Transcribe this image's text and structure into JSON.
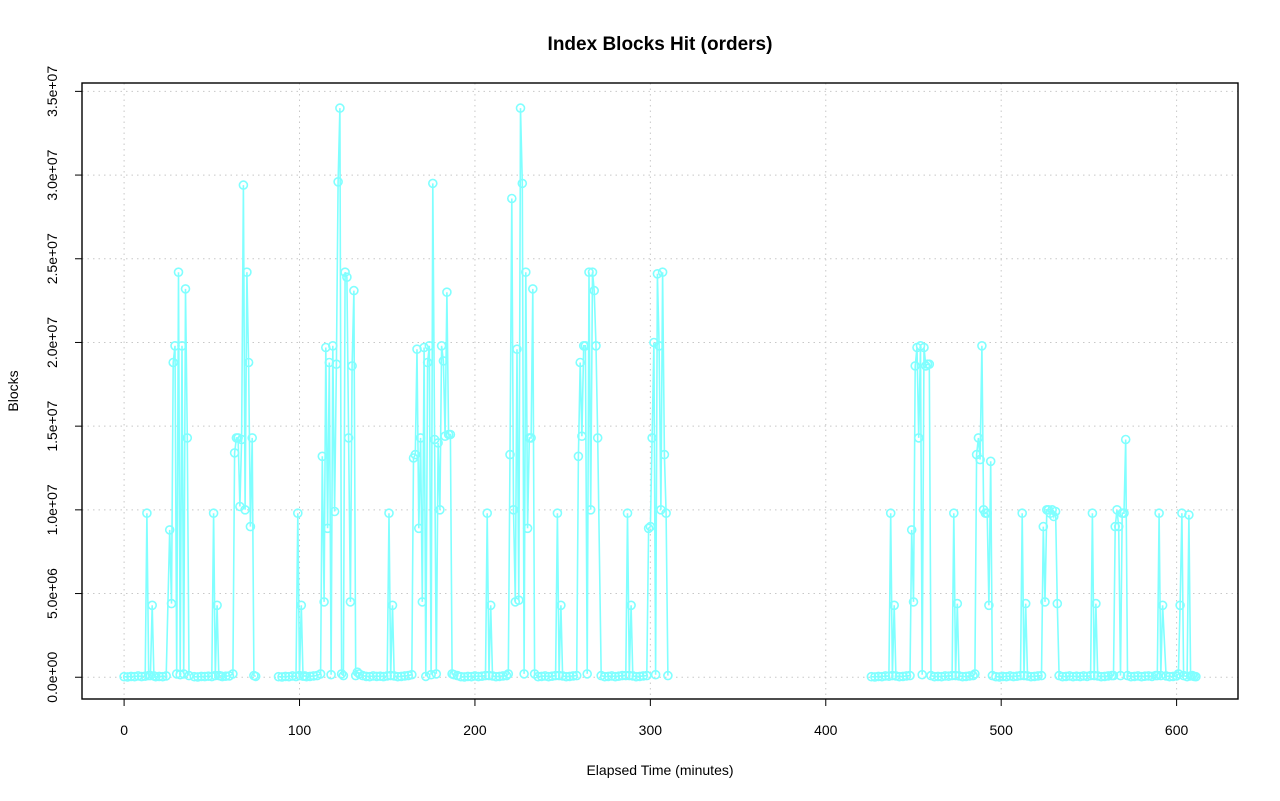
{
  "chart_data": {
    "type": "line",
    "title": "Index Blocks Hit (orders)",
    "xlabel": "Elapsed Time (minutes)",
    "ylabel": "Blocks",
    "xlim": [
      -24,
      635
    ],
    "ylim": [
      -1300000,
      35500000
    ],
    "xticks": [
      0,
      100,
      200,
      300,
      400,
      500,
      600
    ],
    "xtick_labels": [
      "0",
      "100",
      "200",
      "300",
      "400",
      "500",
      "600"
    ],
    "yticks": [
      0,
      5000000,
      10000000,
      15000000,
      20000000,
      25000000,
      30000000,
      35000000
    ],
    "ytick_labels": [
      "0.0e+00",
      "5.0e+06",
      "1.0e+07",
      "1.5e+07",
      "2.0e+07",
      "2.5e+07",
      "3.0e+07",
      "3.5e+07"
    ],
    "grid": true,
    "series_color": "#80ffff",
    "segments": [
      {
        "x": [
          0,
          2,
          4,
          6,
          8,
          10,
          12,
          13,
          14,
          15,
          16,
          17,
          18,
          20,
          22,
          24,
          26,
          27,
          28,
          29,
          30,
          31,
          32,
          33,
          34,
          35,
          36,
          37
        ],
        "y": [
          30000,
          20000,
          50000,
          30000,
          80000,
          40000,
          60000,
          9800000,
          100000,
          100000,
          4300000,
          80000,
          30000,
          50000,
          30000,
          80000,
          8800000,
          4400000,
          18800000,
          19800000,
          200000,
          24200000,
          150000,
          19800000,
          200000,
          23200000,
          14300000,
          100000
        ]
      },
      {
        "x": [
          40,
          42,
          44,
          46,
          48,
          50,
          51,
          52,
          53,
          54,
          55,
          56,
          58,
          60,
          62,
          63,
          64,
          65,
          66,
          67,
          68,
          69,
          70,
          71,
          72,
          73,
          74,
          75
        ],
        "y": [
          30000,
          20000,
          50000,
          40000,
          60000,
          40000,
          9800000,
          100000,
          4300000,
          100000,
          80000,
          40000,
          60000,
          80000,
          200000,
          13400000,
          14300000,
          14300000,
          10200000,
          14200000,
          29400000,
          10000000,
          24200000,
          18800000,
          9000000,
          14300000,
          100000,
          50000
        ]
      },
      {
        "x": [
          88,
          90,
          92,
          94,
          96,
          98,
          99,
          100,
          101,
          102,
          103,
          104,
          106,
          108,
          110,
          112,
          113,
          114,
          115,
          116,
          117,
          118,
          119,
          120,
          121,
          122,
          123,
          124,
          125,
          126,
          127,
          128,
          129,
          130,
          131,
          132,
          133,
          134,
          136,
          138,
          140,
          142,
          144,
          146,
          148,
          150,
          151,
          152,
          153,
          154,
          156,
          158,
          160,
          162,
          164,
          165,
          166,
          167,
          168,
          169,
          170,
          171,
          172,
          173,
          174,
          175,
          176,
          177,
          178,
          179,
          180,
          181,
          182,
          183,
          184,
          185,
          186,
          187,
          188,
          190
        ],
        "y": [
          30000,
          20000,
          50000,
          30000,
          80000,
          40000,
          9800000,
          100000,
          4300000,
          60000,
          80000,
          30000,
          50000,
          80000,
          100000,
          200000,
          13200000,
          4500000,
          19700000,
          8900000,
          18800000,
          150000,
          19800000,
          9900000,
          18700000,
          29600000,
          34000000,
          200000,
          100000,
          24200000,
          23900000,
          14300000,
          4500000,
          18600000,
          23100000,
          100000,
          300000,
          200000,
          100000,
          50000,
          30000,
          80000,
          50000,
          60000,
          40000,
          80000,
          9800000,
          100000,
          4300000,
          80000,
          30000,
          50000,
          80000,
          100000,
          150000,
          13100000,
          13300000,
          19600000,
          8900000,
          14300000,
          4500000,
          19700000,
          50000,
          18800000,
          19800000,
          150000,
          29500000,
          14200000,
          200000,
          14000000,
          10000000,
          19800000,
          18900000,
          14400000,
          23000000,
          14500000,
          14500000,
          200000,
          150000,
          100000
        ]
      },
      {
        "x": [
          192,
          194,
          196,
          198,
          200,
          202,
          204,
          206,
          207,
          208,
          209,
          210,
          212,
          214,
          216,
          218,
          219,
          220,
          221,
          222,
          223,
          224,
          225,
          226,
          227,
          228,
          229,
          230,
          231,
          232,
          233,
          234,
          236,
          238,
          240,
          242,
          244,
          246,
          247,
          248,
          249,
          250,
          252,
          254,
          256,
          258,
          259,
          260,
          261,
          262,
          263,
          264,
          265,
          266,
          267,
          268,
          269,
          270,
          272,
          274,
          276,
          278,
          280,
          282,
          284,
          286,
          287,
          288,
          289,
          290,
          292,
          294,
          296,
          298,
          299,
          300,
          301,
          302,
          303,
          304,
          305,
          306,
          307,
          308,
          309,
          310
        ],
        "y": [
          30000,
          20000,
          50000,
          30000,
          80000,
          40000,
          60000,
          100000,
          9800000,
          100000,
          4300000,
          80000,
          30000,
          50000,
          80000,
          100000,
          200000,
          13300000,
          28600000,
          10000000,
          4500000,
          19600000,
          4600000,
          34000000,
          29500000,
          200000,
          24200000,
          8900000,
          14300000,
          14300000,
          23200000,
          200000,
          30000,
          50000,
          80000,
          30000,
          60000,
          100000,
          9800000,
          100000,
          4300000,
          80000,
          30000,
          50000,
          80000,
          100000,
          13200000,
          18800000,
          14400000,
          19800000,
          19800000,
          200000,
          24200000,
          10000000,
          24200000,
          23100000,
          19800000,
          14300000,
          100000,
          30000,
          50000,
          80000,
          30000,
          60000,
          100000,
          100000,
          9800000,
          100000,
          4300000,
          80000,
          30000,
          50000,
          80000,
          100000,
          8900000,
          9000000,
          14300000,
          20000000,
          150000,
          24100000,
          19800000,
          10000000,
          24200000,
          13300000,
          9800000,
          100000
        ]
      },
      {
        "x": [
          426,
          428,
          430,
          432,
          434,
          436,
          437,
          438,
          439,
          440,
          442,
          444,
          446,
          448,
          449,
          450,
          451,
          452,
          453,
          454,
          455,
          456,
          457,
          458,
          459,
          460,
          462,
          464,
          466,
          468,
          470,
          472,
          473,
          474,
          475,
          476,
          478,
          480,
          482,
          484,
          485,
          486,
          487,
          488,
          489,
          490,
          491,
          492,
          493,
          494,
          495
        ],
        "y": [
          30000,
          20000,
          50000,
          30000,
          80000,
          60000,
          9800000,
          100000,
          4300000,
          80000,
          30000,
          50000,
          80000,
          100000,
          8800000,
          4500000,
          18600000,
          19700000,
          14300000,
          19800000,
          150000,
          19700000,
          18600000,
          18700000,
          18700000,
          100000,
          30000,
          50000,
          30000,
          80000,
          60000,
          100000,
          9800000,
          100000,
          4400000,
          80000,
          30000,
          50000,
          80000,
          100000,
          200000,
          13300000,
          14300000,
          13000000,
          19800000,
          10000000,
          9800000,
          9800000,
          4300000,
          12900000,
          100000
        ]
      },
      {
        "x": [
          497,
          499,
          501,
          503,
          505,
          507,
          509,
          511,
          512,
          513,
          514,
          515,
          517,
          519,
          521,
          523,
          524,
          525,
          526,
          527,
          528,
          529,
          530,
          531,
          532,
          533,
          535,
          537,
          539,
          541,
          543,
          545,
          547,
          549,
          551,
          552,
          553,
          554,
          555,
          557,
          559,
          561,
          563,
          564,
          565,
          566,
          567,
          568,
          569,
          570,
          571,
          572,
          574,
          576,
          578,
          580,
          582,
          584,
          586,
          588,
          589,
          590,
          591,
          592,
          594,
          596,
          598,
          600,
          601,
          602,
          603,
          604,
          606,
          607,
          608,
          609,
          610,
          611
        ],
        "y": [
          30000,
          20000,
          50000,
          30000,
          80000,
          40000,
          60000,
          100000,
          9800000,
          100000,
          4400000,
          80000,
          30000,
          50000,
          80000,
          100000,
          9000000,
          4500000,
          10000000,
          10000000,
          9800000,
          10000000,
          9600000,
          9900000,
          4400000,
          100000,
          30000,
          50000,
          80000,
          30000,
          60000,
          40000,
          80000,
          50000,
          100000,
          9800000,
          100000,
          4400000,
          80000,
          30000,
          50000,
          80000,
          100000,
          100000,
          9000000,
          10000000,
          9000000,
          100000,
          9800000,
          9800000,
          14200000,
          100000,
          30000,
          50000,
          80000,
          30000,
          60000,
          80000,
          50000,
          100000,
          100000,
          9800000,
          100000,
          4300000,
          80000,
          30000,
          50000,
          80000,
          200000,
          4300000,
          9800000,
          100000,
          30000,
          9700000,
          80000,
          100000,
          50000,
          30000
        ]
      }
    ]
  }
}
